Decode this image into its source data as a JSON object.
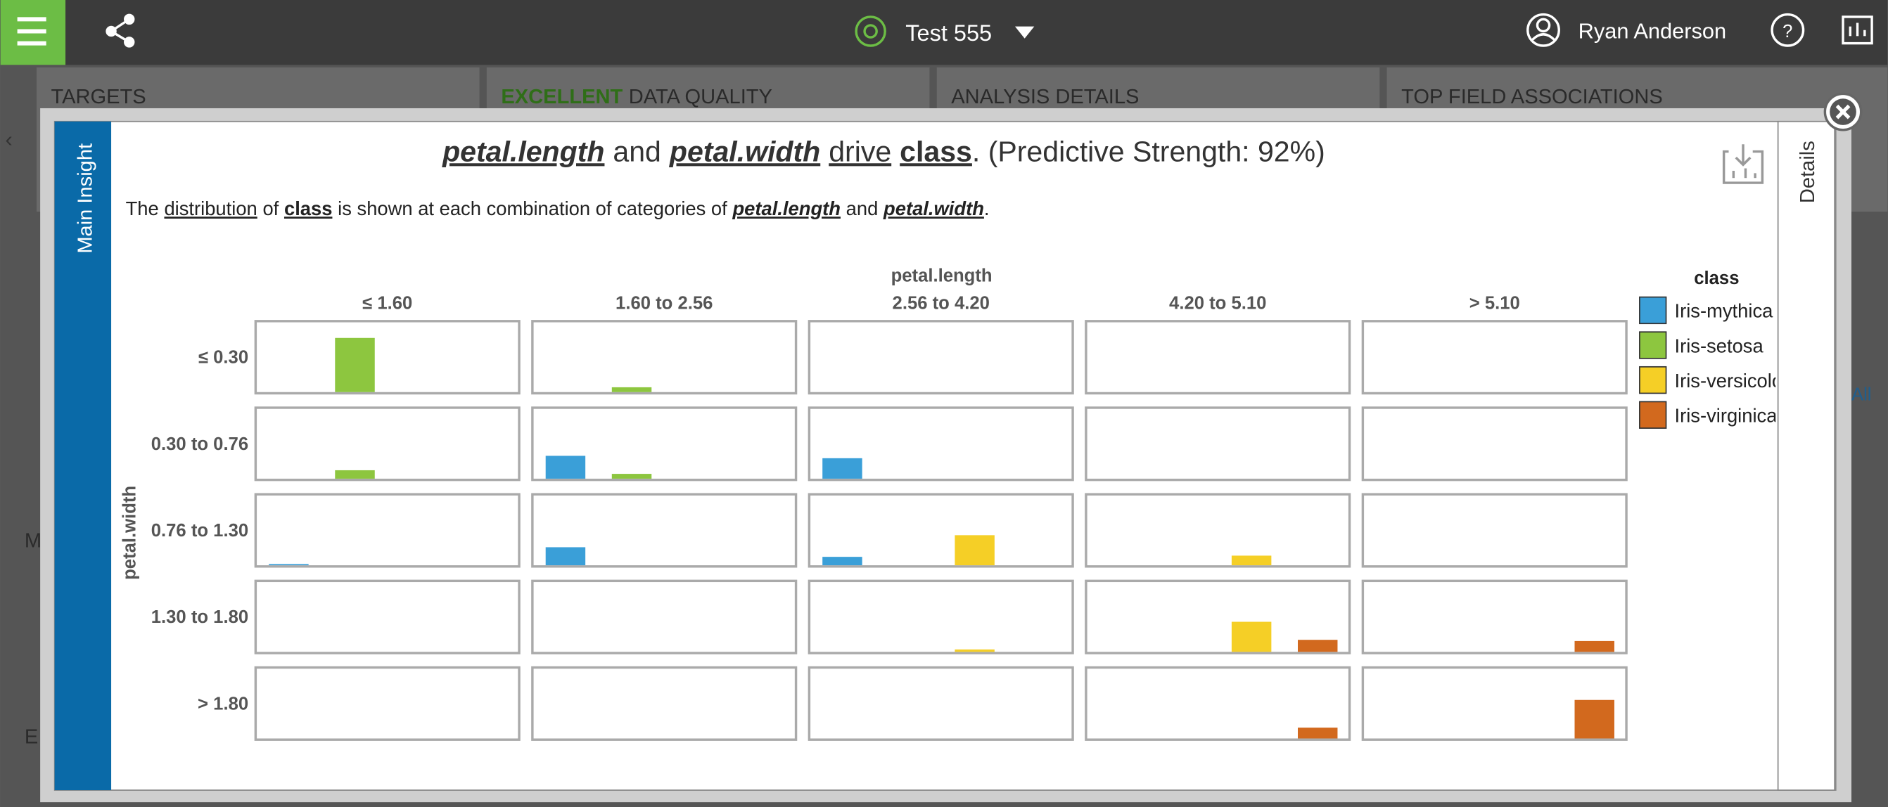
{
  "app_bar": {
    "project": "Test 555",
    "user": "Ryan Anderson",
    "help": "?"
  },
  "cards": [
    {
      "label": "TARGETS"
    },
    {
      "highlight": "EXCELLENT",
      "label": "DATA QUALITY"
    },
    {
      "label": "ANALYSIS DETAILS"
    },
    {
      "label": "TOP FIELD ASSOCIATIONS"
    }
  ],
  "background_text": [
    "M",
    "E",
    "All"
  ],
  "tabs": {
    "left": "Main Insight",
    "right": "Details"
  },
  "headline": [
    "petal.length",
    "and",
    "petal.width",
    "drive",
    "class",
    ". (Predictive Strength: 92%)"
  ],
  "description": [
    "The",
    "distribution",
    "of",
    "class",
    "is shown at each combination of categories of",
    "petal.length",
    "and",
    "petal.width",
    "."
  ],
  "chart_data": {
    "type": "bar",
    "x_label": "petal.length",
    "y_label": "petal.width",
    "x_categories": [
      "≤ 1.60",
      "1.60 to 2.56",
      "2.56 to 4.20",
      "4.20 to 5.10",
      "> 5.10"
    ],
    "y_categories": [
      "≤ 0.30",
      "0.30 to 0.76",
      "0.76 to 1.30",
      "1.30 to 1.80",
      "> 1.80"
    ],
    "legend_title": "class",
    "series": [
      {
        "name": "Iris-mythica",
        "color": "#3a9fd8",
        "values": [
          [
            0,
            0,
            0,
            0,
            0
          ],
          [
            0,
            19,
            17,
            0,
            0
          ],
          [
            1,
            15,
            7,
            0,
            0
          ],
          [
            0,
            0,
            0,
            0,
            0
          ],
          [
            0,
            0,
            0,
            0,
            0
          ]
        ]
      },
      {
        "name": "Iris-setosa",
        "color": "#8dc63f",
        "values": [
          [
            45,
            4,
            0,
            0,
            0
          ],
          [
            7,
            4,
            0,
            0,
            0
          ],
          [
            0,
            0,
            0,
            0,
            0
          ],
          [
            0,
            0,
            0,
            0,
            0
          ],
          [
            0,
            0,
            0,
            0,
            0
          ]
        ]
      },
      {
        "name": "Iris-versicolor",
        "color": "#f5cf26",
        "values": [
          [
            0,
            0,
            0,
            0,
            0
          ],
          [
            0,
            0,
            0,
            0,
            0
          ],
          [
            0,
            0,
            25,
            8,
            0
          ],
          [
            0,
            0,
            2,
            25,
            0
          ],
          [
            0,
            0,
            0,
            0,
            0
          ]
        ]
      },
      {
        "name": "Iris-virginica",
        "color": "#d2691e",
        "values": [
          [
            0,
            0,
            0,
            0,
            0
          ],
          [
            0,
            0,
            0,
            0,
            0
          ],
          [
            0,
            0,
            0,
            0,
            0
          ],
          [
            0,
            0,
            0,
            10,
            9
          ],
          [
            0,
            0,
            0,
            9,
            32
          ]
        ]
      }
    ]
  }
}
